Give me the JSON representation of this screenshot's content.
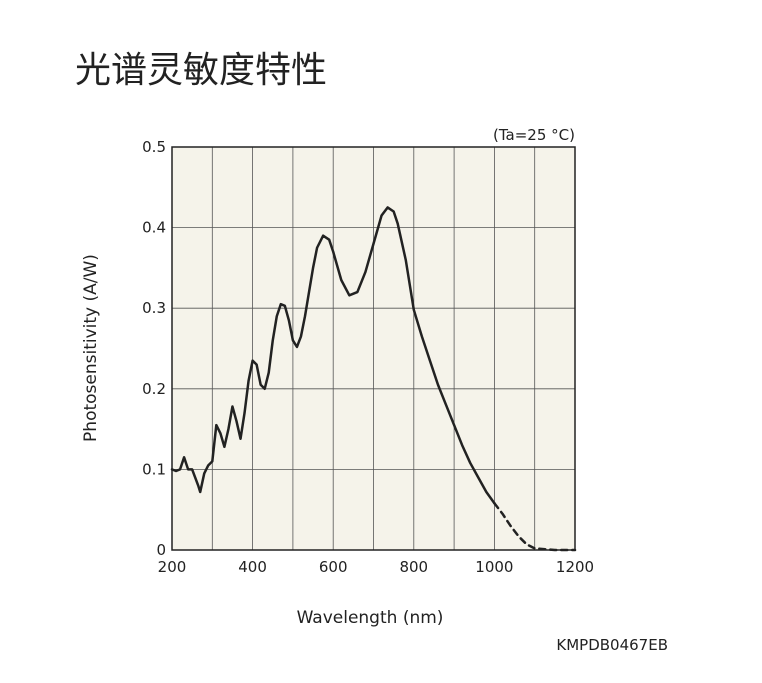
{
  "title": "光谱灵敏度特性",
  "code": "KMPDB0467EB",
  "chart_data": {
    "type": "line",
    "annotation": "(Ta=25 °C)",
    "xlabel": "Wavelength (nm)",
    "ylabel": "Photosensitivity (A/W)",
    "xlim": [
      200,
      1200
    ],
    "xticks": [
      200,
      400,
      600,
      800,
      1000,
      1200
    ],
    "ylim": [
      0,
      0.5
    ],
    "yticks": [
      0,
      0.1,
      0.2,
      0.3,
      0.4,
      0.5
    ],
    "grid_x": [
      300,
      500,
      700,
      900,
      1100
    ],
    "grid": true,
    "series": [
      {
        "style": "solid",
        "color": "#222222",
        "x": [
          200,
          210,
          220,
          230,
          240,
          250,
          265,
          270,
          280,
          290,
          300,
          310,
          320,
          330,
          340,
          350,
          360,
          370,
          380,
          390,
          400,
          410,
          420,
          430,
          440,
          450,
          460,
          470,
          480,
          490,
          500,
          510,
          520,
          530,
          540,
          550,
          560,
          575,
          590,
          600,
          620,
          640,
          660,
          680,
          700,
          720,
          735,
          750,
          760,
          780,
          800,
          820,
          840,
          860,
          880,
          900,
          920,
          940,
          960,
          980,
          1000
        ],
        "values": [
          0.1,
          0.098,
          0.1,
          0.115,
          0.1,
          0.1,
          0.08,
          0.072,
          0.095,
          0.105,
          0.11,
          0.155,
          0.145,
          0.128,
          0.15,
          0.178,
          0.16,
          0.138,
          0.17,
          0.21,
          0.235,
          0.23,
          0.205,
          0.2,
          0.22,
          0.26,
          0.29,
          0.305,
          0.303,
          0.285,
          0.26,
          0.252,
          0.265,
          0.29,
          0.32,
          0.35,
          0.375,
          0.39,
          0.385,
          0.37,
          0.335,
          0.316,
          0.32,
          0.345,
          0.38,
          0.415,
          0.425,
          0.42,
          0.405,
          0.36,
          0.298,
          0.265,
          0.235,
          0.205,
          0.18,
          0.155,
          0.13,
          0.108,
          0.09,
          0.072,
          0.058
        ]
      },
      {
        "style": "dashed",
        "color": "#222222",
        "x": [
          1000,
          1020,
          1040,
          1060,
          1080,
          1100,
          1150,
          1200
        ],
        "values": [
          0.058,
          0.045,
          0.03,
          0.017,
          0.007,
          0.002,
          0,
          0
        ]
      }
    ]
  }
}
